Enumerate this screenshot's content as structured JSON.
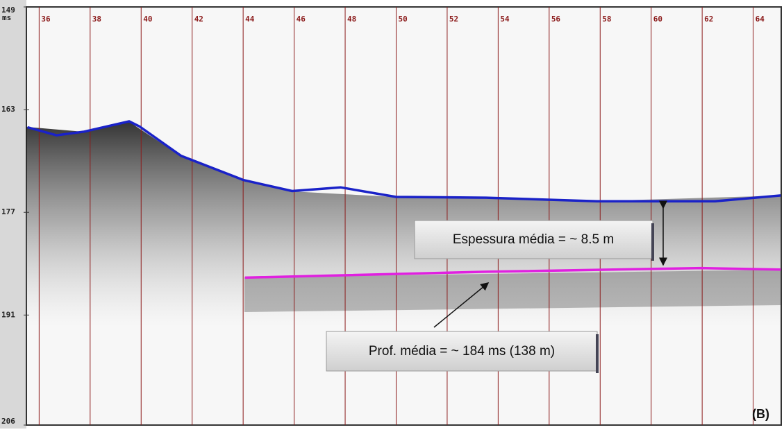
{
  "chart_data": {
    "type": "line",
    "panel_label": "(B)",
    "y_unit": "ms",
    "annotations": [
      "Espessura média = ~ 8.5 m",
      "Prof. média = ~ 184 ms (138 m)"
    ],
    "xlim": [
      35.5,
      65.1
    ],
    "xticks": [
      36,
      38,
      40,
      42,
      44,
      46,
      48,
      50,
      52,
      54,
      56,
      58,
      60,
      62,
      64
    ],
    "ylim": [
      149,
      206
    ],
    "yticks": [
      149,
      163,
      177,
      191,
      206
    ],
    "series": [
      {
        "color": "#1a22c8",
        "x": [
          35.54,
          36.68,
          37.77,
          39.53,
          39.94,
          41.57,
          44.02,
          45.92,
          47.82,
          50.0,
          53.53,
          57.88,
          62.5,
          65.08
        ],
        "values": [
          165.4,
          166.5,
          166.0,
          164.6,
          165.3,
          169.3,
          172.6,
          174.1,
          173.6,
          174.9,
          175.0,
          175.5,
          175.5,
          174.7
        ]
      },
      {
        "color": "#e020e0",
        "x": [
          44.07,
          53.53,
          61.95,
          65.08
        ],
        "values": [
          185.9,
          185.1,
          184.6,
          184.8
        ]
      }
    ]
  }
}
